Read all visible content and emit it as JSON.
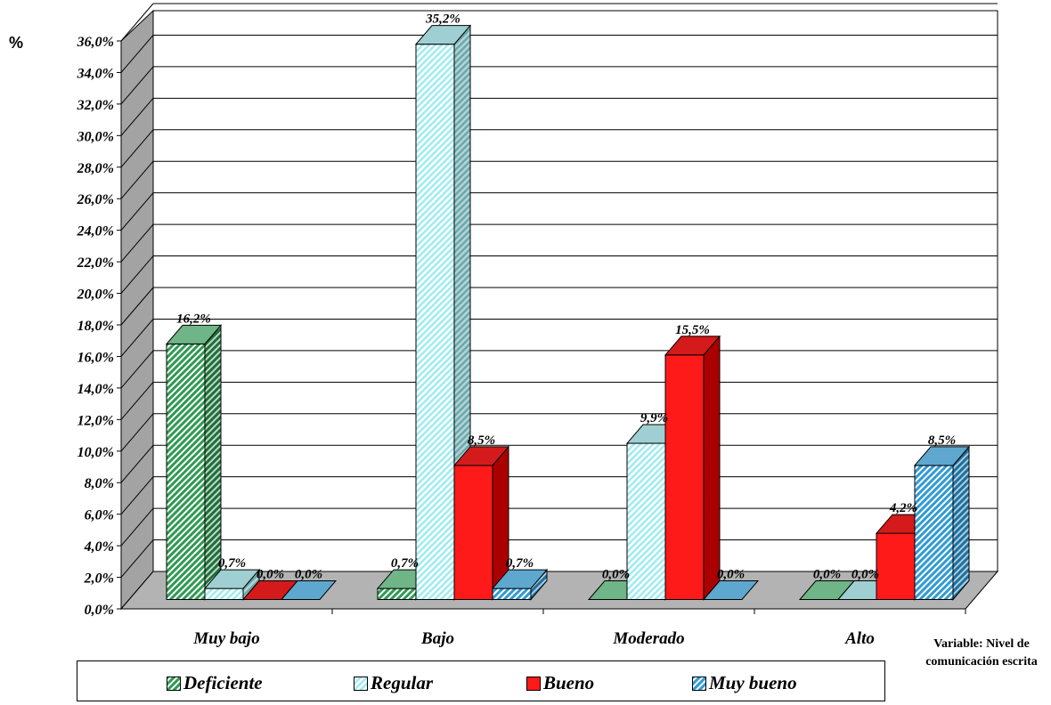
{
  "chart_data": {
    "type": "bar",
    "ylabel": "%",
    "xlabel": "Variable: Nivel de comunicación escrita",
    "categories": [
      "Muy bajo",
      "Bajo",
      "Moderado",
      "Alto"
    ],
    "series": [
      {
        "name": "Deficiente",
        "values": [
          16.2,
          0.7,
          0.0,
          0.0
        ],
        "labels": [
          "16,2%",
          "0,7%",
          "0,0%",
          "0,0%"
        ],
        "color": "#2e9a52",
        "pattern": "hatch-green"
      },
      {
        "name": "Regular",
        "values": [
          0.7,
          35.2,
          9.9,
          0.0
        ],
        "labels": [
          "0,7%",
          "35,2%",
          "9,9%",
          "0,0%"
        ],
        "color": "#b9f3f6",
        "pattern": "hatch-cyan"
      },
      {
        "name": "Bueno",
        "values": [
          0.0,
          8.5,
          15.5,
          4.2
        ],
        "labels": [
          "0,0%",
          "8,5%",
          "15,5%",
          "4,2%"
        ],
        "color": "#ff1a1a",
        "pattern": "solid-red"
      },
      {
        "name": "Muy bueno",
        "values": [
          0.0,
          0.7,
          0.0,
          8.5
        ],
        "labels": [
          "0,0%",
          "0,7%",
          "0,0%",
          "8,5%"
        ],
        "color": "#3aa6d9",
        "pattern": "hatch-blue"
      }
    ],
    "ylim": [
      0,
      36
    ],
    "yticks": [
      "0,0%",
      "2,0%",
      "4,0%",
      "6,0%",
      "8,0%",
      "10,0%",
      "12,0%",
      "14,0%",
      "16,0%",
      "18,0%",
      "20,0%",
      "22,0%",
      "24,0%",
      "26,0%",
      "28,0%",
      "30,0%",
      "32,0%",
      "34,0%",
      "36,0%"
    ],
    "grid": true,
    "legend_position": "bottom",
    "style": "3d-clustered-column"
  },
  "axis_title_y": "%",
  "axis_title_x_line1": "Variable: Nivel de",
  "axis_title_x_line2": "comunicación escrita",
  "legend": {
    "items": [
      "Deficiente",
      "Regular",
      "Bueno",
      "Muy bueno"
    ]
  }
}
